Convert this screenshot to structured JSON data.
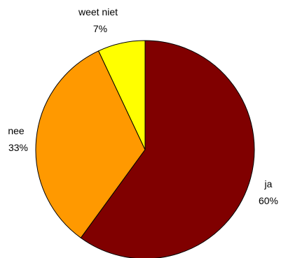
{
  "chart_data": {
    "type": "pie",
    "slices": [
      {
        "label": "ja",
        "value": 60,
        "value_label": "60%",
        "color": "#800000"
      },
      {
        "label": "nee",
        "value": 33,
        "value_label": "33%",
        "color": "#FF9900"
      },
      {
        "label": "weet niet",
        "value": 7,
        "value_label": "7%",
        "color": "#FFFF00"
      }
    ],
    "start": "12 o'clock",
    "direction": "clockwise",
    "slice_border_color": "#000000",
    "legend": "none"
  }
}
